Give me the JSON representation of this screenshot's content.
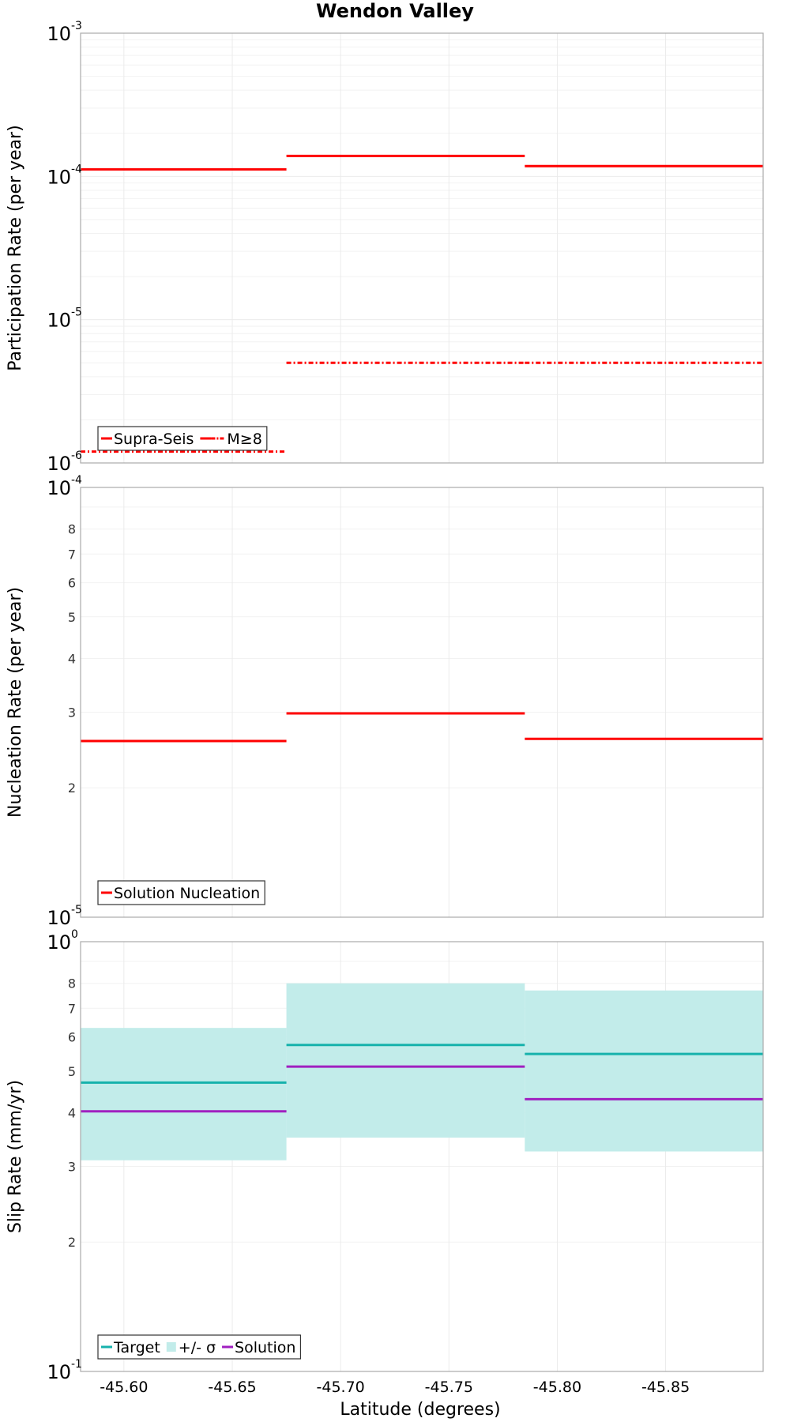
{
  "chart_data": {
    "title": "Wendon Valley",
    "xlabel": "Latitude (degrees)",
    "xlim": [
      -45.58,
      -45.895
    ],
    "x_ticks": [
      {
        "value": -45.6,
        "label": "-45.60"
      },
      {
        "value": -45.65,
        "label": "-45.65"
      },
      {
        "value": -45.7,
        "label": "-45.70"
      },
      {
        "value": -45.75,
        "label": "-45.75"
      },
      {
        "value": -45.8,
        "label": "-45.80"
      },
      {
        "value": -45.85,
        "label": "-45.85"
      }
    ],
    "segments": [
      [
        -45.58,
        -45.675
      ],
      [
        -45.675,
        -45.785
      ],
      [
        -45.785,
        -45.895
      ]
    ],
    "panels": [
      {
        "id": "participation",
        "type": "line",
        "ylabel": "Participation Rate (per year)",
        "yscale": "log",
        "ylim": [
          1e-06,
          0.001
        ],
        "major_ticks": [
          {
            "base": "10",
            "exp": "-6",
            "value": 1e-06
          },
          {
            "base": "10",
            "exp": "-5",
            "value": 1e-05
          },
          {
            "base": "10",
            "exp": "-4",
            "value": 0.0001
          },
          {
            "base": "10",
            "exp": "-3",
            "value": 0.001
          }
        ],
        "minor_ticks": [],
        "legend_position": "bottom-left",
        "series": [
          {
            "name": "Supra-Seis",
            "style": "solid",
            "color": "#ff0000",
            "values": [
              0.000112,
              0.000139,
              0.000118
            ]
          },
          {
            "name": "M≥8",
            "style": "dashdot",
            "color": "#ff0000",
            "values": [
              1.2e-06,
              5e-06,
              5e-06
            ]
          }
        ]
      },
      {
        "id": "nucleation",
        "type": "line",
        "ylabel": "Nucleation Rate (per year)",
        "yscale": "log",
        "ylim": [
          1e-05,
          0.0001
        ],
        "major_ticks": [
          {
            "base": "10",
            "exp": "-5",
            "value": 1e-05
          },
          {
            "base": "10",
            "exp": "-4",
            "value": 0.0001
          }
        ],
        "minor_ticks": [
          {
            "label": "2",
            "value": 2e-05
          },
          {
            "label": "3",
            "value": 3e-05
          },
          {
            "label": "4",
            "value": 4e-05
          },
          {
            "label": "5",
            "value": 5e-05
          },
          {
            "label": "6",
            "value": 6e-05
          },
          {
            "label": "7",
            "value": 7e-05
          },
          {
            "label": "8",
            "value": 8e-05
          }
        ],
        "legend_position": "bottom-left",
        "series": [
          {
            "name": "Solution Nucleation",
            "style": "solid",
            "color": "#ff0000",
            "values": [
              2.57e-05,
              2.98e-05,
              2.6e-05
            ]
          }
        ]
      },
      {
        "id": "slip",
        "type": "line",
        "ylabel": "Slip Rate (mm/yr)",
        "yscale": "log",
        "ylim": [
          0.1,
          1.0
        ],
        "major_ticks": [
          {
            "base": "10",
            "exp": "-1",
            "value": 0.1
          },
          {
            "base": "10",
            "exp": "0",
            "value": 1.0
          }
        ],
        "minor_ticks": [
          {
            "label": "2",
            "value": 0.2
          },
          {
            "label": "3",
            "value": 0.3
          },
          {
            "label": "4",
            "value": 0.4
          },
          {
            "label": "5",
            "value": 0.5
          },
          {
            "label": "6",
            "value": 0.6
          },
          {
            "label": "7",
            "value": 0.7
          },
          {
            "label": "8",
            "value": 0.8
          }
        ],
        "legend_position": "bottom-left",
        "band": {
          "name": "+/- σ",
          "color": "#c2ecea",
          "low": [
            0.31,
            0.35,
            0.325
          ],
          "high": [
            0.63,
            0.8,
            0.77
          ]
        },
        "series": [
          {
            "name": "Target",
            "style": "solid",
            "color": "#17b2ac",
            "values": [
              0.47,
              0.575,
              0.548
            ]
          },
          {
            "name": "Solution",
            "style": "solid",
            "color": "#a020c0",
            "values": [
              0.403,
              0.512,
              0.43
            ]
          }
        ]
      }
    ]
  }
}
